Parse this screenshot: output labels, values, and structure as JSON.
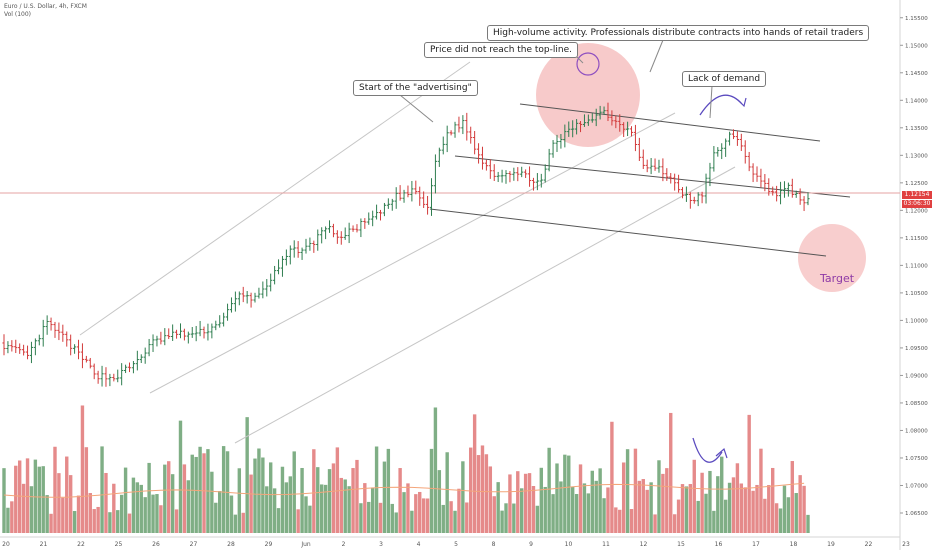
{
  "header": {
    "symbol": "Euro / U.S. Dollar, 4h, FXCM",
    "volume_indicator": "Vol (100)"
  },
  "annotations": {
    "advertising": "Start of the \"advertising\"",
    "top_line": "Price did not reach the top-line.",
    "high_volume": "High-volume activity. Professionals distribute contracts into hands of retail traders",
    "lack_of_demand": "Lack of demand",
    "target": "Target"
  },
  "price_label": {
    "price": "1.12154",
    "countdown": "03:06:30"
  },
  "colors": {
    "up": "#2e7d4f",
    "down": "#d23a3a",
    "vol_up": "#7fae85",
    "vol_down": "#e58a8a",
    "annotation_circle": "#f2a6a6",
    "annotation_arrow": "#5b4bbf",
    "ma_line": "#f4a57a"
  },
  "chart_data": {
    "type": "candlestick",
    "interval": "4h",
    "y_axis_ticks": [
      "1.15500",
      "1.15000",
      "1.14500",
      "1.14000",
      "1.13500",
      "1.13000",
      "1.12500",
      "1.12000",
      "1.11500",
      "1.11000",
      "1.10500",
      "1.10000",
      "1.09500",
      "1.09000",
      "1.08500",
      "1.08000",
      "1.07500",
      "1.07000",
      "1.06500"
    ],
    "x_axis_ticks": [
      "20",
      "21",
      "22",
      "25",
      "26",
      "27",
      "28",
      "29",
      "Jun",
      "2",
      "3",
      "4",
      "5",
      "8",
      "9",
      "10",
      "11",
      "12",
      "15",
      "16",
      "17",
      "18",
      "19",
      "22",
      "23"
    ],
    "ylim": [
      1.063,
      1.1575
    ],
    "waypoints": [
      [
        0,
        1.0955
      ],
      [
        6,
        1.0935
      ],
      [
        11,
        1.0995
      ],
      [
        15,
        1.097
      ],
      [
        20,
        1.093
      ],
      [
        24,
        1.09
      ],
      [
        28,
        1.0895
      ],
      [
        33,
        1.092
      ],
      [
        38,
        1.096
      ],
      [
        43,
        1.0975
      ],
      [
        49,
        1.0975
      ],
      [
        54,
        1.099
      ],
      [
        60,
        1.1045
      ],
      [
        64,
        1.104
      ],
      [
        68,
        1.1075
      ],
      [
        73,
        1.1125
      ],
      [
        78,
        1.1135
      ],
      [
        82,
        1.117
      ],
      [
        86,
        1.115
      ],
      [
        90,
        1.117
      ],
      [
        95,
        1.119
      ],
      [
        100,
        1.1225
      ],
      [
        105,
        1.1235
      ],
      [
        108,
        1.12
      ],
      [
        110,
        1.129
      ],
      [
        113,
        1.134
      ],
      [
        117,
        1.136
      ],
      [
        121,
        1.13
      ],
      [
        125,
        1.1265
      ],
      [
        129,
        1.127
      ],
      [
        134,
        1.126
      ],
      [
        137,
        1.125
      ],
      [
        140,
        1.132
      ],
      [
        145,
        1.135
      ],
      [
        150,
        1.137
      ],
      [
        153,
        1.138
      ],
      [
        156,
        1.136
      ],
      [
        160,
        1.1345
      ],
      [
        163,
        1.128
      ],
      [
        167,
        1.1275
      ],
      [
        171,
        1.125
      ],
      [
        175,
        1.1215
      ],
      [
        178,
        1.123
      ],
      [
        181,
        1.13
      ],
      [
        185,
        1.1335
      ],
      [
        188,
        1.132
      ],
      [
        191,
        1.1265
      ],
      [
        194,
        1.1245
      ],
      [
        197,
        1.123
      ],
      [
        200,
        1.124
      ],
      [
        203,
        1.122
      ],
      [
        205,
        1.1218
      ]
    ],
    "volume_peak_bar_indices": [
      20,
      45,
      62,
      110,
      120,
      155,
      170,
      190
    ]
  }
}
